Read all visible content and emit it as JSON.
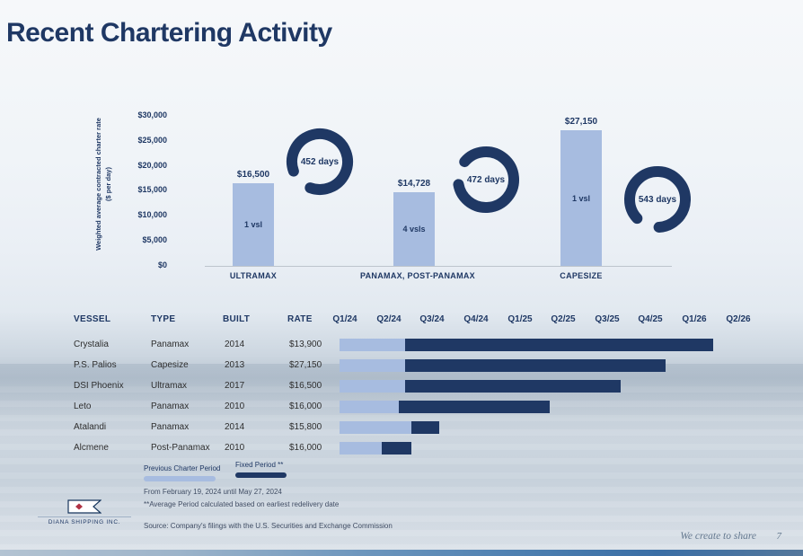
{
  "slide": {
    "title": "Recent Chartering Activity",
    "page_number": "7",
    "tagline": "We create to share",
    "logo_text": "DIANA SHIPPING INC."
  },
  "colors": {
    "navy": "#1f3864",
    "light_blue": "#a7bce0",
    "text_dark": "#2e2e2e",
    "footnote": "#3f4c63",
    "tagline_gray": "#64788f"
  },
  "chart_data": {
    "type": "bar",
    "title": "",
    "ylabel_line1": "Weighted average contracted charter rate",
    "ylabel_line2": "($ per day)",
    "ylim": [
      0,
      30000
    ],
    "grid": false,
    "yticks": [
      "$30,000",
      "$25,000",
      "$20,000",
      "$15,000",
      "$10,000",
      "$5,000",
      "$0"
    ],
    "categories": [
      "ULTRAMAX",
      "PANAMAX, POST-PANAMAX",
      "CAPESIZE"
    ],
    "bars": [
      {
        "category": "ULTRAMAX",
        "value": 16500,
        "value_label": "$16,500",
        "vessels_label": "1 vsl",
        "days": 452,
        "days_label": "452 days"
      },
      {
        "category": "PANAMAX, POST-PANAMAX",
        "value": 14728,
        "value_label": "$14,728",
        "vessels_label": "4 vsls",
        "days": 472,
        "days_label": "472 days"
      },
      {
        "category": "CAPESIZE",
        "value": 27150,
        "value_label": "$27,150",
        "vessels_label": "1 vsl",
        "days": 543,
        "days_label": "543 days"
      }
    ]
  },
  "table": {
    "headers": {
      "vessel": "VESSEL",
      "type": "TYPE",
      "built": "BUILT",
      "rate": "RATE"
    },
    "quarter_headers": [
      "Q1/24",
      "Q2/24",
      "Q3/24",
      "Q4/24",
      "Q1/25",
      "Q2/25",
      "Q3/25",
      "Q4/25",
      "Q1/26",
      "Q2/26"
    ],
    "rows": [
      {
        "vessel": "Crystalia",
        "type": "Panamax",
        "built": "2014",
        "rate": "$13,900",
        "prev": [
          0,
          1.5
        ],
        "fixed": [
          1.5,
          8.55
        ]
      },
      {
        "vessel": "P.S. Palios",
        "type": "Capesize",
        "built": "2013",
        "rate": "$27,150",
        "prev": [
          0,
          1.5
        ],
        "fixed": [
          1.5,
          7.45
        ]
      },
      {
        "vessel": "DSI Phoenix",
        "type": "Ultramax",
        "built": "2017",
        "rate": "$16,500",
        "prev": [
          0,
          1.5
        ],
        "fixed": [
          1.5,
          6.42
        ]
      },
      {
        "vessel": "Leto",
        "type": "Panamax",
        "built": "2010",
        "rate": "$16,000",
        "prev": [
          0,
          1.35
        ],
        "fixed": [
          1.35,
          4.8
        ]
      },
      {
        "vessel": "Atalandi",
        "type": "Panamax",
        "built": "2014",
        "rate": "$15,800",
        "prev": [
          0,
          1.65
        ],
        "fixed": [
          1.65,
          2.28
        ]
      },
      {
        "vessel": "Alcmene",
        "type": "Post-Panamax",
        "built": "2010",
        "rate": "$16,000",
        "prev": [
          0,
          0.97
        ],
        "fixed": [
          0.97,
          1.65
        ]
      }
    ]
  },
  "legend": {
    "previous": "Previous Charter Period",
    "fixed": "Fixed Period **"
  },
  "footnotes": [
    "From February 19, 2024 until May 27, 2024",
    "**Average Period calculated based on earliest redelivery date",
    "Source: Company's filings with the U.S. Securities and Exchange Commission"
  ]
}
